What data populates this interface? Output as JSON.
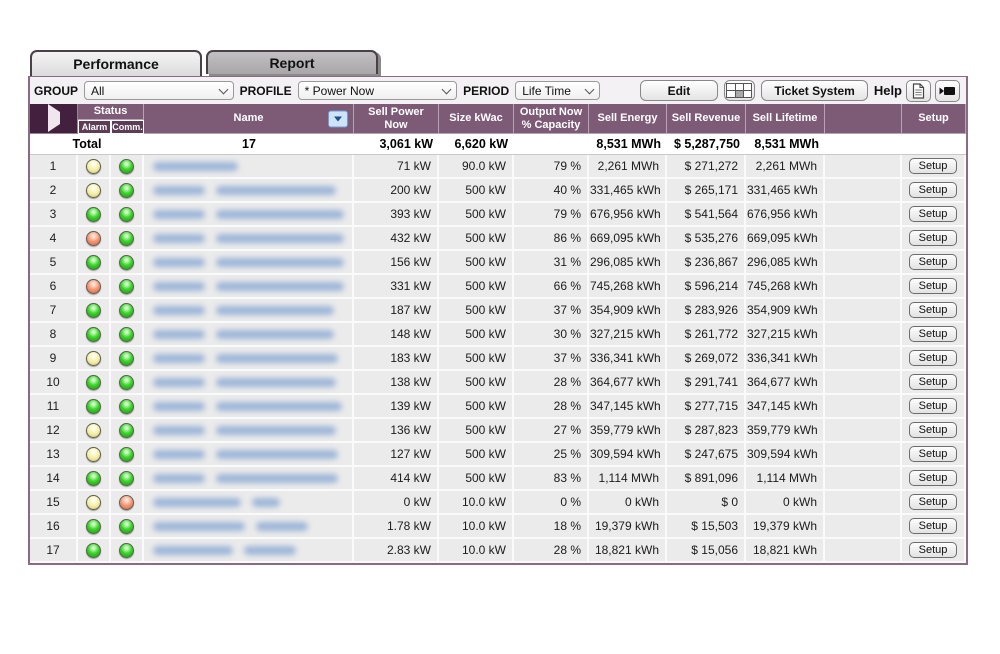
{
  "tabs": [
    {
      "label": "Performance",
      "active": true
    },
    {
      "label": "Report",
      "active": false
    }
  ],
  "toolbar": {
    "group_label": "GROUP",
    "group_value": "All",
    "profile_label": "PROFILE",
    "profile_value": "* Power Now",
    "period_label": "PERIOD",
    "period_value": "Life Time",
    "edit_button": "Edit",
    "ticket_button": "Ticket System",
    "help_label": "Help"
  },
  "table": {
    "headers": {
      "status": "Status",
      "alarm": "Alarm",
      "comm": "Comm.",
      "name": "Name",
      "sell_power": "Sell Power Now",
      "size": "Size kWac",
      "output": "Output Now % Capacity",
      "energy": "Sell Energy",
      "revenue": "Sell Revenue",
      "lifetime": "Sell Lifetime",
      "setup": "Setup"
    },
    "setup_label": "Setup",
    "total": {
      "label": "Total",
      "count": "17",
      "sell_power": "3,061 kW",
      "size": "6,620 kW",
      "output": "",
      "energy": "8,531 MWh",
      "revenue": "$ 5,287,750",
      "lifetime": "8,531 MWh"
    },
    "rows": [
      {
        "num": "1",
        "alarm": "yellow",
        "comm": "green",
        "name_blur": [
          85
        ],
        "sell_power": "71 kW",
        "size": "90.0 kW",
        "output": "79 %",
        "energy": "2,261 MWh",
        "revenue": "$ 271,272",
        "lifetime": "2,261 MWh"
      },
      {
        "num": "2",
        "alarm": "yellow",
        "comm": "green",
        "name_blur": [
          52,
          120
        ],
        "sell_power": "200 kW",
        "size": "500 kW",
        "output": "40 %",
        "energy": "331,465 kWh",
        "revenue": "$ 265,171",
        "lifetime": "331,465 kWh"
      },
      {
        "num": "3",
        "alarm": "green",
        "comm": "green",
        "name_blur": [
          52,
          128
        ],
        "sell_power": "393 kW",
        "size": "500 kW",
        "output": "79 %",
        "energy": "676,956 kWh",
        "revenue": "$ 541,564",
        "lifetime": "676,956 kWh"
      },
      {
        "num": "4",
        "alarm": "orange",
        "comm": "green",
        "name_blur": [
          52,
          128
        ],
        "sell_power": "432 kW",
        "size": "500 kW",
        "output": "86 %",
        "energy": "669,095 kWh",
        "revenue": "$ 535,276",
        "lifetime": "669,095 kWh"
      },
      {
        "num": "5",
        "alarm": "green",
        "comm": "green",
        "name_blur": [
          52,
          128
        ],
        "sell_power": "156 kW",
        "size": "500 kW",
        "output": "31 %",
        "energy": "296,085 kWh",
        "revenue": "$ 236,867",
        "lifetime": "296,085 kWh"
      },
      {
        "num": "6",
        "alarm": "orange",
        "comm": "green",
        "name_blur": [
          52,
          128
        ],
        "sell_power": "331 kW",
        "size": "500 kW",
        "output": "66 %",
        "energy": "745,268 kWh",
        "revenue": "$ 596,214",
        "lifetime": "745,268 kWh"
      },
      {
        "num": "7",
        "alarm": "green",
        "comm": "green",
        "name_blur": [
          52,
          118
        ],
        "sell_power": "187 kW",
        "size": "500 kW",
        "output": "37 %",
        "energy": "354,909 kWh",
        "revenue": "$ 283,926",
        "lifetime": "354,909 kWh"
      },
      {
        "num": "8",
        "alarm": "green",
        "comm": "green",
        "name_blur": [
          52,
          118
        ],
        "sell_power": "148 kW",
        "size": "500 kW",
        "output": "30 %",
        "energy": "327,215 kWh",
        "revenue": "$ 261,772",
        "lifetime": "327,215 kWh"
      },
      {
        "num": "9",
        "alarm": "yellow",
        "comm": "green",
        "name_blur": [
          52,
          122
        ],
        "sell_power": "183 kW",
        "size": "500 kW",
        "output": "37 %",
        "energy": "336,341 kWh",
        "revenue": "$ 269,072",
        "lifetime": "336,341 kWh"
      },
      {
        "num": "10",
        "alarm": "green",
        "comm": "green",
        "name_blur": [
          52,
          120
        ],
        "sell_power": "138 kW",
        "size": "500 kW",
        "output": "28 %",
        "energy": "364,677 kWh",
        "revenue": "$ 291,741",
        "lifetime": "364,677 kWh"
      },
      {
        "num": "11",
        "alarm": "green",
        "comm": "green",
        "name_blur": [
          52,
          126
        ],
        "sell_power": "139 kW",
        "size": "500 kW",
        "output": "28 %",
        "energy": "347,145 kWh",
        "revenue": "$ 277,715",
        "lifetime": "347,145 kWh"
      },
      {
        "num": "12",
        "alarm": "yellow",
        "comm": "green",
        "name_blur": [
          52,
          120
        ],
        "sell_power": "136 kW",
        "size": "500 kW",
        "output": "27 %",
        "energy": "359,779 kWh",
        "revenue": "$ 287,823",
        "lifetime": "359,779 kWh"
      },
      {
        "num": "13",
        "alarm": "yellow",
        "comm": "green",
        "name_blur": [
          52,
          122
        ],
        "sell_power": "127 kW",
        "size": "500 kW",
        "output": "25 %",
        "energy": "309,594 kWh",
        "revenue": "$ 247,675",
        "lifetime": "309,594 kWh"
      },
      {
        "num": "14",
        "alarm": "green",
        "comm": "green",
        "name_blur": [
          52,
          122
        ],
        "sell_power": "414 kW",
        "size": "500 kW",
        "output": "83 %",
        "energy": "1,114 MWh",
        "revenue": "$ 891,096",
        "lifetime": "1,114 MWh"
      },
      {
        "num": "15",
        "alarm": "yellow",
        "comm": "orange",
        "name_blur": [
          88,
          28
        ],
        "sell_power": "0 kW",
        "size": "10.0 kW",
        "output": "0 %",
        "energy": "0 kWh",
        "revenue": "$ 0",
        "lifetime": "0 kWh"
      },
      {
        "num": "16",
        "alarm": "green",
        "comm": "green",
        "name_blur": [
          92,
          52
        ],
        "sell_power": "1.78 kW",
        "size": "10.0 kW",
        "output": "18 %",
        "energy": "19,379 kWh",
        "revenue": "$ 15,503",
        "lifetime": "19,379 kWh"
      },
      {
        "num": "17",
        "alarm": "green",
        "comm": "green",
        "name_blur": [
          80,
          52
        ],
        "sell_power": "2.83 kW",
        "size": "10.0 kW",
        "output": "28 %",
        "energy": "18,821 kWh",
        "revenue": "$ 15,056",
        "lifetime": "18,821 kWh"
      }
    ]
  },
  "colors": {
    "header_purple": "#7d5a76",
    "subheader_purple": "#5e3b57",
    "arrow_cell_purple": "#43203d",
    "row_bg": "#ebebeb",
    "status_green": "#3ad427",
    "status_yellow": "#f3eda2",
    "status_orange": "#f49272",
    "sort_icon_blue": "#cfe3f8"
  }
}
